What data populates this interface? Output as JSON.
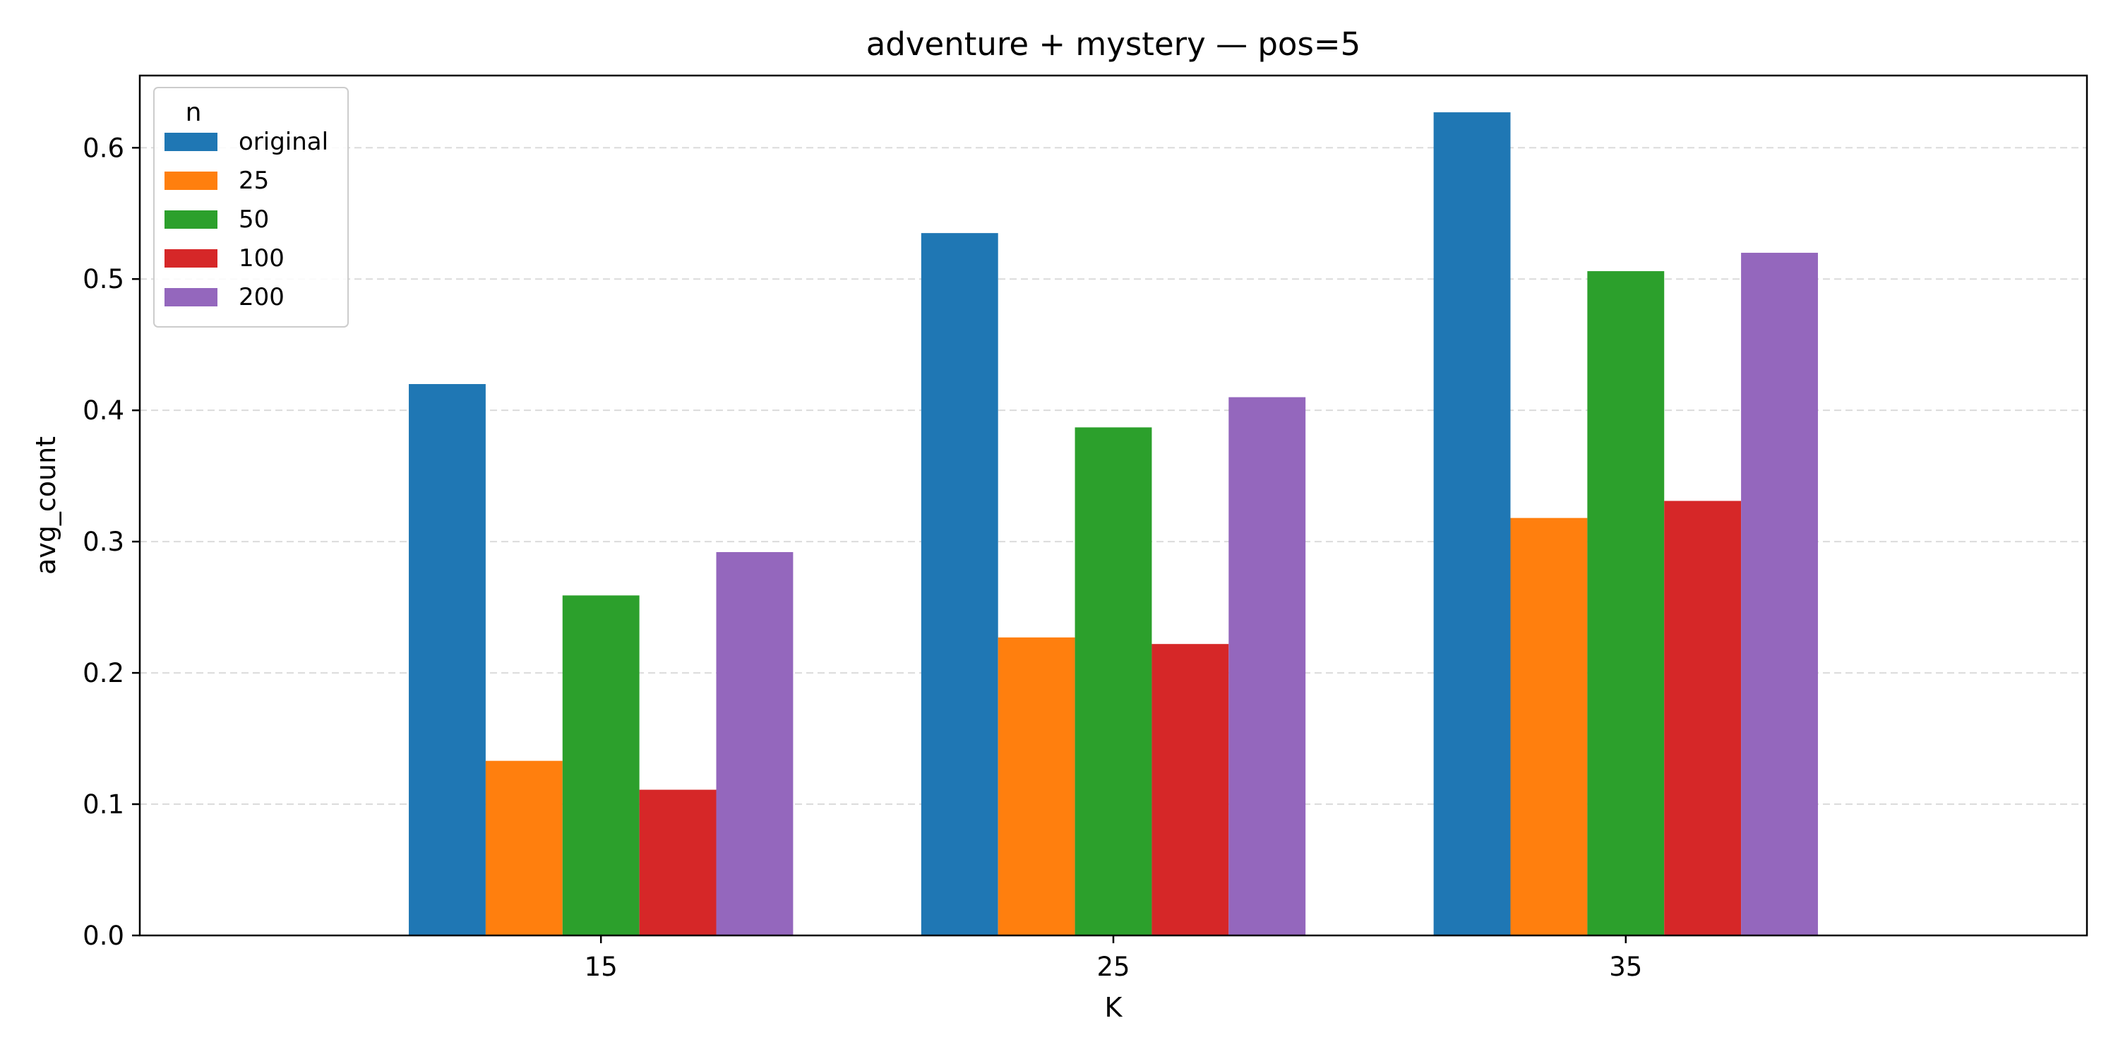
{
  "chart_data": {
    "type": "bar",
    "title": "adventure + mystery — pos=5",
    "xlabel": "K",
    "ylabel": "avg_count",
    "categories": [
      "15",
      "25",
      "35"
    ],
    "ylim": [
      0,
      0.655
    ],
    "yticks": [
      0.0,
      0.1,
      0.2,
      0.3,
      0.4,
      0.5,
      0.6
    ],
    "ytick_labels": [
      "0.0",
      "0.1",
      "0.2",
      "0.3",
      "0.4",
      "0.5",
      "0.6"
    ],
    "grid": "y dashed",
    "legend_title": "n",
    "legend_position": "top-left",
    "series": [
      {
        "name": "original",
        "color": "#1f77b4",
        "values": [
          0.42,
          0.535,
          0.627
        ]
      },
      {
        "name": "25",
        "color": "#ff7f0e",
        "values": [
          0.133,
          0.227,
          0.318
        ]
      },
      {
        "name": "50",
        "color": "#2ca02c",
        "values": [
          0.259,
          0.387,
          0.506
        ]
      },
      {
        "name": "100",
        "color": "#d62728",
        "values": [
          0.111,
          0.222,
          0.331
        ]
      },
      {
        "name": "200",
        "color": "#9467bd",
        "values": [
          0.292,
          0.41,
          0.52
        ]
      }
    ]
  }
}
